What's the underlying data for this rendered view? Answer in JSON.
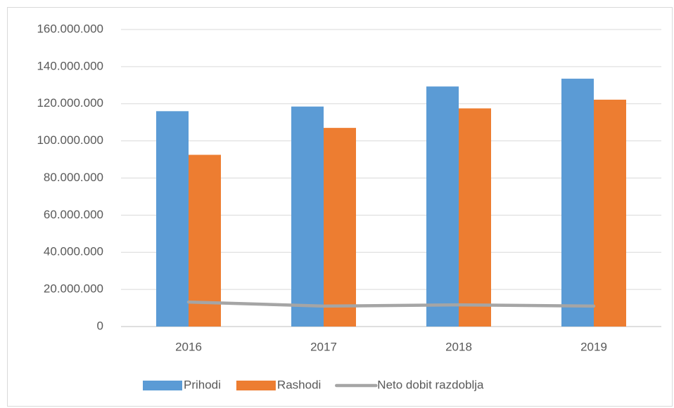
{
  "chart_data": {
    "type": "bar",
    "categories": [
      "2016",
      "2017",
      "2018",
      "2019"
    ],
    "series": [
      {
        "name": "Prihodi",
        "color": "#5b9bd5",
        "type": "bar",
        "values": [
          116000000,
          118500000,
          129300000,
          133500000
        ]
      },
      {
        "name": "Rashodi",
        "color": "#ed7d31",
        "type": "bar",
        "values": [
          92500000,
          107000000,
          117500000,
          122200000
        ]
      },
      {
        "name": "Neto dobit razdoblja",
        "color": "#a5a5a5",
        "type": "line",
        "values": [
          13200000,
          11000000,
          11700000,
          11000000
        ]
      }
    ],
    "ylim": [
      0,
      160000000
    ],
    "yticks": [
      0,
      {
        "value": 20000000,
        "label": "20.000.000"
      },
      {
        "value": 40000000,
        "label": "40.000.000"
      },
      {
        "value": 60000000,
        "label": "60.000.000"
      },
      {
        "value": 80000000,
        "label": "80.000.000"
      },
      {
        "value": 100000000,
        "label": "100.000.000"
      },
      {
        "value": 120000000,
        "label": "120.000.000"
      },
      {
        "value": 140000000,
        "label": "140.000.000"
      },
      {
        "value": 160000000,
        "label": "160.000.000"
      }
    ],
    "grid": true,
    "legend": "bottom"
  }
}
